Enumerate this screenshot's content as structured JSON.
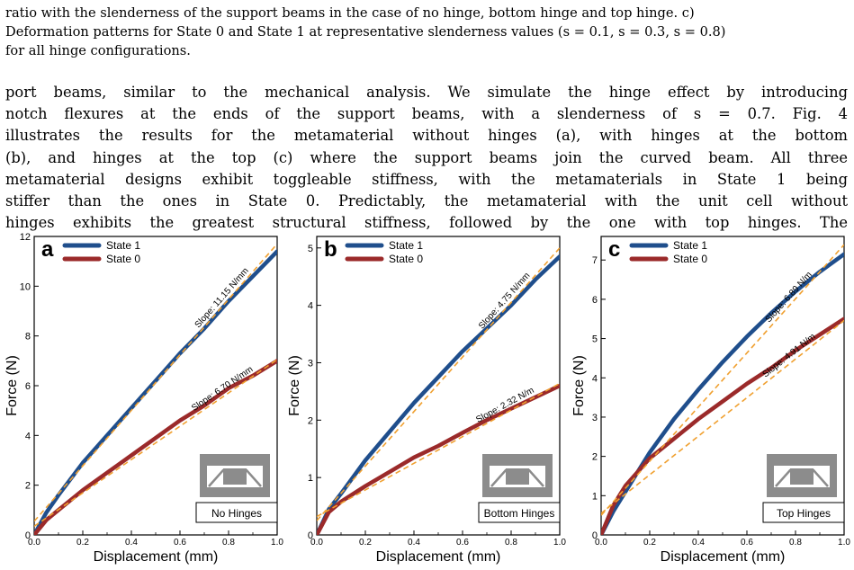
{
  "caption_lines": [
    "ratio with the slenderness of the support beams in the case of no hinge, bottom hinge and top hinge. c)",
    "Deformation patterns for State 0 and State 1 at representative slenderness values (s = 0.1, s = 0.3, s = 0.8)",
    "for all hinge configurations."
  ],
  "body_lines": [
    "port beams, similar to the mechanical analysis. We simulate the hinge effect by introducing",
    "notch flexures at the ends of the support beams, with a slenderness of s = 0.7. Fig. 4",
    "illustrates the results for the metamaterial without hinges (a), with hinges at the bottom",
    "(b), and hinges at the top (c) where the support beams join the curved beam. All three",
    "metamaterial designs exhibit toggleable stiffness, with the metamaterials in State 1 being",
    "stiffer than the ones in State 0. Predictably, the metamaterial with the unit cell without",
    "hinges exhibits the greatest structural stiffness, followed by the one with top hinges. The"
  ],
  "colors": {
    "state1": "#1f4e8c",
    "state0": "#9b2a2a",
    "fit": "#f0a030",
    "inset": "#8c8c8c"
  },
  "chart_data": [
    {
      "type": "line",
      "panel_label": "a",
      "xlabel": "Displacement (mm)",
      "ylabel": "Force (N)",
      "xlim": [
        0,
        1.0
      ],
      "ylim": [
        0,
        12
      ],
      "xticks": [
        "0.0",
        "0.2",
        "0.4",
        "0.6",
        "0.8",
        "1.0"
      ],
      "yticks": [
        "0",
        "2",
        "4",
        "6",
        "8",
        "10",
        "12"
      ],
      "legend": [
        "State 1",
        "State 0"
      ],
      "legend_position": "top-left",
      "inset_label": "No Hinges",
      "series": [
        {
          "name": "State 1",
          "x": [
            0,
            0.05,
            0.1,
            0.2,
            0.3,
            0.4,
            0.5,
            0.6,
            0.7,
            0.8,
            0.9,
            1.0
          ],
          "y": [
            0,
            0.9,
            1.6,
            2.9,
            4.0,
            5.1,
            6.2,
            7.3,
            8.3,
            9.4,
            10.4,
            11.4
          ]
        },
        {
          "name": "State 0",
          "x": [
            0,
            0.05,
            0.1,
            0.2,
            0.3,
            0.4,
            0.5,
            0.6,
            0.7,
            0.8,
            0.9,
            1.0
          ],
          "y": [
            0,
            0.6,
            1.0,
            1.8,
            2.5,
            3.2,
            3.9,
            4.6,
            5.2,
            5.9,
            6.4,
            7.0
          ]
        }
      ],
      "fits": [
        {
          "label": "Slope: 11.15 N/mm",
          "slope": 11.15,
          "intercept": 0.55
        },
        {
          "label": "Slope: 6.70 N/mm",
          "slope": 6.7,
          "intercept": 0.35
        }
      ]
    },
    {
      "type": "line",
      "panel_label": "b",
      "xlabel": "Displacement (mm)",
      "ylabel": "Force (N)",
      "xlim": [
        0,
        1.0
      ],
      "ylim": [
        0,
        5.2
      ],
      "xticks": [
        "0.0",
        "0.2",
        "0.4",
        "0.6",
        "0.8",
        "1.0"
      ],
      "yticks": [
        "0",
        "1",
        "2",
        "3",
        "4",
        "5"
      ],
      "legend": [
        "State 1",
        "State 0"
      ],
      "legend_position": "top-left",
      "inset_label": "Bottom Hinges",
      "series": [
        {
          "name": "State 1",
          "x": [
            0,
            0.05,
            0.1,
            0.2,
            0.3,
            0.4,
            0.5,
            0.6,
            0.7,
            0.8,
            0.9,
            1.0
          ],
          "y": [
            0,
            0.45,
            0.72,
            1.3,
            1.8,
            2.3,
            2.75,
            3.2,
            3.6,
            4.0,
            4.45,
            4.85
          ]
        },
        {
          "name": "State 0",
          "x": [
            0,
            0.05,
            0.1,
            0.2,
            0.3,
            0.4,
            0.5,
            0.6,
            0.7,
            0.8,
            0.9,
            1.0
          ],
          "y": [
            0,
            0.4,
            0.58,
            0.85,
            1.1,
            1.35,
            1.55,
            1.78,
            2.0,
            2.2,
            2.4,
            2.6
          ]
        }
      ],
      "fits": [
        {
          "label": "Slope: 4.75 N/mm",
          "slope": 4.75,
          "intercept": 0.25
        },
        {
          "label": "Slope: 2.32 N/m",
          "slope": 2.32,
          "intercept": 0.32
        }
      ]
    },
    {
      "type": "line",
      "panel_label": "c",
      "xlabel": "Displacement (mm)",
      "ylabel": "Force (N)",
      "xlim": [
        0,
        1.0
      ],
      "ylim": [
        0,
        7.6
      ],
      "xticks": [
        "0.0",
        "0.2",
        "0.4",
        "0.6",
        "0.8",
        "1.0"
      ],
      "yticks": [
        "0",
        "1",
        "2",
        "3",
        "4",
        "5",
        "6",
        "7"
      ],
      "legend": [
        "State 1",
        "State 0"
      ],
      "legend_position": "top-left",
      "inset_label": "Top Hinges",
      "series": [
        {
          "name": "State 1",
          "x": [
            0,
            0.05,
            0.1,
            0.2,
            0.3,
            0.4,
            0.5,
            0.6,
            0.7,
            0.8,
            0.9,
            1.0
          ],
          "y": [
            0,
            0.6,
            1.1,
            2.1,
            2.95,
            3.7,
            4.4,
            5.05,
            5.65,
            6.2,
            6.7,
            7.15
          ]
        },
        {
          "name": "State 0",
          "x": [
            0,
            0.05,
            0.1,
            0.2,
            0.3,
            0.4,
            0.5,
            0.6,
            0.7,
            0.8,
            0.9,
            1.0
          ],
          "y": [
            0,
            0.75,
            1.25,
            1.95,
            2.45,
            2.95,
            3.4,
            3.85,
            4.25,
            4.7,
            5.1,
            5.5
          ]
        }
      ],
      "fits": [
        {
          "label": "Slope: 6.89 N/m",
          "slope": 6.89,
          "intercept": 0.5
        },
        {
          "label": "Slope: 4.91 N/m",
          "slope": 4.91,
          "intercept": 0.55
        }
      ]
    }
  ]
}
